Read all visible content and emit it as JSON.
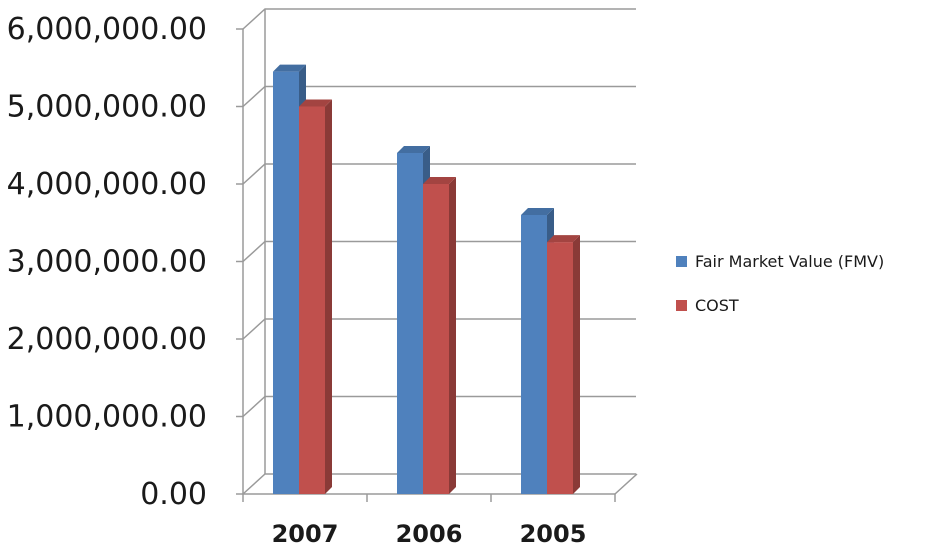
{
  "chart_data": {
    "type": "bar",
    "style": "3d-clustered-column",
    "categories": [
      "2007",
      "2006",
      "2005"
    ],
    "series": [
      {
        "name": "Fair Market Value (FMV)",
        "color": "#4f81bd",
        "values": [
          5450000,
          4400000,
          3600000
        ]
      },
      {
        "name": "COST",
        "color": "#c0504d",
        "values": [
          5000000,
          4000000,
          3250000
        ]
      }
    ],
    "y_ticks": [
      "0.00",
      "1,000,000.00",
      "2,000,000.00",
      "3,000,000.00",
      "4,000,000.00",
      "5,000,000.00",
      "6,000,000.00"
    ],
    "ylim": [
      0,
      6000000
    ],
    "grid": true,
    "legend_position": "right",
    "title": "",
    "xlabel": "",
    "ylabel": ""
  }
}
